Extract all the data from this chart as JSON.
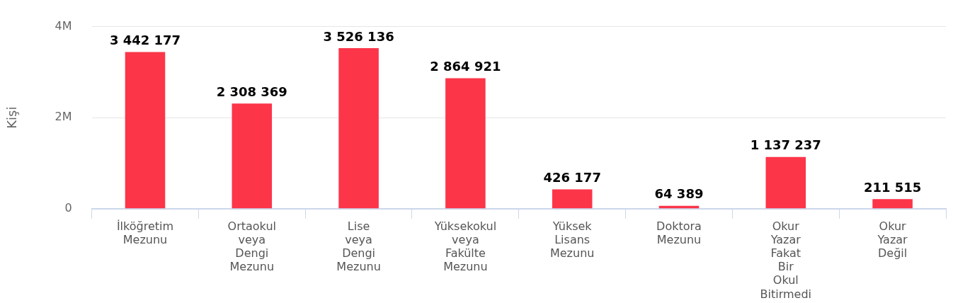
{
  "chart_data": {
    "type": "bar",
    "ylabel": "Kişi",
    "categories": [
      "İlköğretim Mezunu",
      "Ortaokul veya Dengi Mezunu",
      "Lise veya Dengi Mezunu",
      "Yüksekokul veya Fakülte Mezunu",
      "Yüksek Lisans Mezunu",
      "Doktora Mezunu",
      "Okur Yazar Fakat Bir Okul Bitirmedi",
      "Okur Yazar Değil"
    ],
    "values": [
      3442177,
      2308369,
      3526136,
      2864921,
      426177,
      64389,
      1137237,
      211515
    ],
    "color": "#fc3549",
    "ylim": [
      0,
      4000000
    ],
    "yticks": [
      0,
      {
        "value": 2000000,
        "label": "2M"
      },
      {
        "value": 4000000,
        "label": "4M"
      }
    ],
    "grid": "y",
    "data_labels": true,
    "legend": false
  }
}
